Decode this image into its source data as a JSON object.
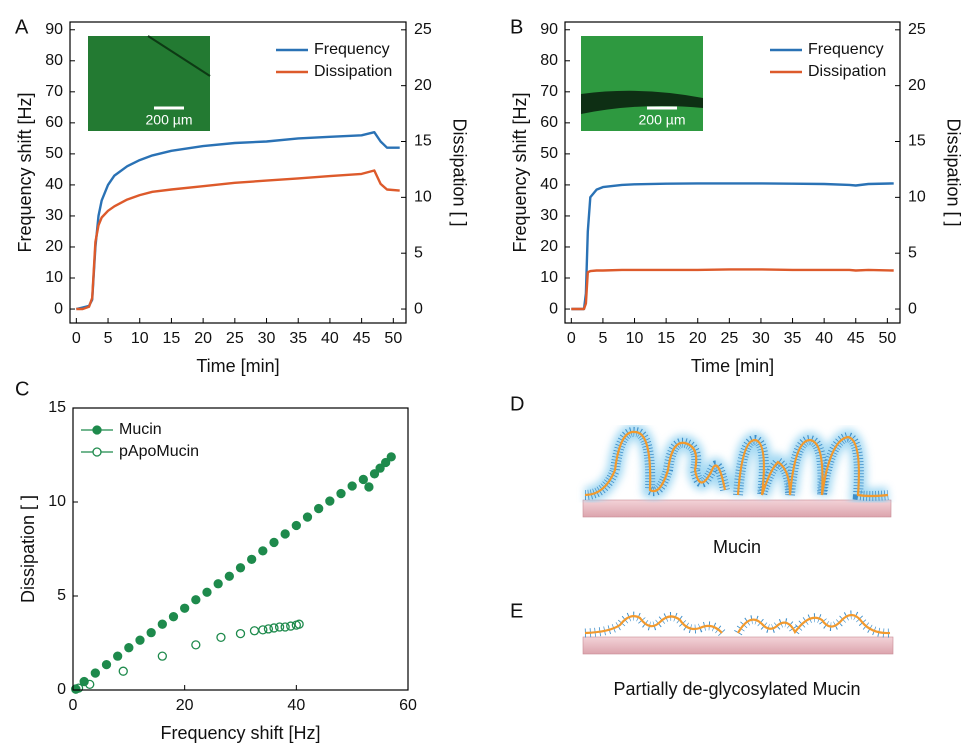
{
  "chart_data": [
    {
      "type": "line",
      "panel": "A",
      "xlabel": "Time [min]",
      "ylabel": "Frequency shift [Hz]",
      "y2label": "Dissipation [ ]",
      "annotations": [
        "200 µm"
      ],
      "legend": "upper right",
      "x": [
        0,
        1,
        2,
        2.5,
        3,
        3.5,
        4,
        5,
        6,
        8,
        10,
        12,
        15,
        20,
        25,
        30,
        35,
        40,
        45,
        47,
        48,
        49,
        51
      ],
      "series": [
        {
          "name": "Frequency",
          "color": "#2a72b5",
          "values": [
            0,
            0.5,
            1,
            3,
            20,
            30,
            35,
            40,
            43,
            46,
            48,
            49.5,
            51,
            52.5,
            53.5,
            54,
            55,
            55.5,
            56,
            57,
            54,
            52,
            52
          ]
        },
        {
          "name": "Dissipation",
          "color": "#dd5a2b",
          "axis": "y2",
          "values": [
            0,
            0,
            0.2,
            1,
            6,
            7.5,
            8.2,
            8.8,
            9.2,
            9.8,
            10.2,
            10.5,
            10.7,
            11,
            11.3,
            11.5,
            11.7,
            11.9,
            12.1,
            12.4,
            11.2,
            10.7,
            10.6
          ]
        }
      ],
      "xlim": [
        -1,
        52
      ],
      "xticks": [
        0,
        5,
        10,
        15,
        20,
        25,
        30,
        35,
        40,
        45,
        50
      ],
      "ylim": [
        -4.5,
        92.5
      ],
      "yticks": [
        0,
        10,
        20,
        30,
        40,
        50,
        60,
        70,
        80,
        90
      ],
      "y2lim": [
        -1.25,
        25.7
      ],
      "y2ticks": [
        0,
        5,
        10,
        15,
        20,
        25
      ]
    },
    {
      "type": "line",
      "panel": "B",
      "xlabel": "Time [min]",
      "ylabel": "Frequency shift [Hz]",
      "y2label": "Dissipation [ ]",
      "annotations": [
        "200 µm"
      ],
      "legend": "upper right",
      "x": [
        0,
        1,
        2,
        2.3,
        2.6,
        3,
        4,
        5,
        8,
        10,
        15,
        20,
        25,
        30,
        35,
        40,
        44,
        45,
        47,
        51
      ],
      "series": [
        {
          "name": "Frequency",
          "color": "#2a72b5",
          "values": [
            0,
            0,
            0,
            5,
            25,
            36,
            38.5,
            39.3,
            40,
            40.2,
            40.4,
            40.5,
            40.5,
            40.5,
            40.4,
            40.3,
            40,
            39.8,
            40.3,
            40.5
          ]
        },
        {
          "name": "Dissipation",
          "color": "#dd5a2b",
          "axis": "y2",
          "values": [
            0,
            0,
            0,
            0.5,
            3.3,
            3.4,
            3.45,
            3.45,
            3.5,
            3.5,
            3.5,
            3.5,
            3.55,
            3.55,
            3.5,
            3.5,
            3.5,
            3.45,
            3.5,
            3.45
          ]
        }
      ],
      "xlim": [
        -1,
        52
      ],
      "xticks": [
        0,
        5,
        10,
        15,
        20,
        25,
        30,
        35,
        40,
        45,
        50
      ],
      "ylim": [
        -4.5,
        92.5
      ],
      "yticks": [
        0,
        10,
        20,
        30,
        40,
        50,
        60,
        70,
        80,
        90
      ],
      "y2lim": [
        -1.25,
        25.7
      ],
      "y2ticks": [
        0,
        5,
        10,
        15,
        20,
        25
      ]
    },
    {
      "type": "scatter",
      "panel": "C",
      "xlabel": "Frequency shift [Hz]",
      "ylabel": "Dissipation [ ]",
      "legend": "upper left",
      "series": [
        {
          "name": "Mucin",
          "color": "#1e8a4c",
          "filled": true,
          "x": [
            0.5,
            2,
            4,
            6,
            8,
            10,
            12,
            14,
            16,
            18,
            20,
            22,
            24,
            26,
            28,
            30,
            32,
            34,
            36,
            38,
            40,
            42,
            44,
            46,
            48,
            50,
            52,
            53,
            54,
            55,
            56,
            57
          ],
          "values": [
            0.05,
            0.45,
            0.9,
            1.35,
            1.8,
            2.25,
            2.65,
            3.05,
            3.5,
            3.9,
            4.35,
            4.8,
            5.2,
            5.65,
            6.05,
            6.5,
            6.95,
            7.4,
            7.85,
            8.3,
            8.75,
            9.2,
            9.65,
            10.05,
            10.45,
            10.85,
            11.2,
            10.8,
            11.5,
            11.8,
            12.1,
            12.4
          ]
        },
        {
          "name": "pApoMucin",
          "color": "#1e8a4c",
          "filled": false,
          "x": [
            0.5,
            1,
            3,
            9,
            16,
            22,
            26.5,
            30,
            32.5,
            34,
            35,
            36,
            37,
            38,
            39,
            40,
            40.5
          ],
          "values": [
            0.05,
            0.1,
            0.3,
            1,
            1.8,
            2.4,
            2.8,
            3,
            3.15,
            3.2,
            3.25,
            3.3,
            3.35,
            3.35,
            3.4,
            3.45,
            3.5
          ]
        }
      ],
      "xlim": [
        0,
        60
      ],
      "xticks": [
        0,
        20,
        40,
        60
      ],
      "ylim": [
        0,
        15
      ],
      "yticks": [
        0,
        5,
        10,
        15
      ]
    }
  ],
  "diagrams": [
    {
      "panel": "D",
      "caption": "Mucin"
    },
    {
      "panel": "E",
      "caption": "Partially de-glycosylated Mucin"
    }
  ]
}
